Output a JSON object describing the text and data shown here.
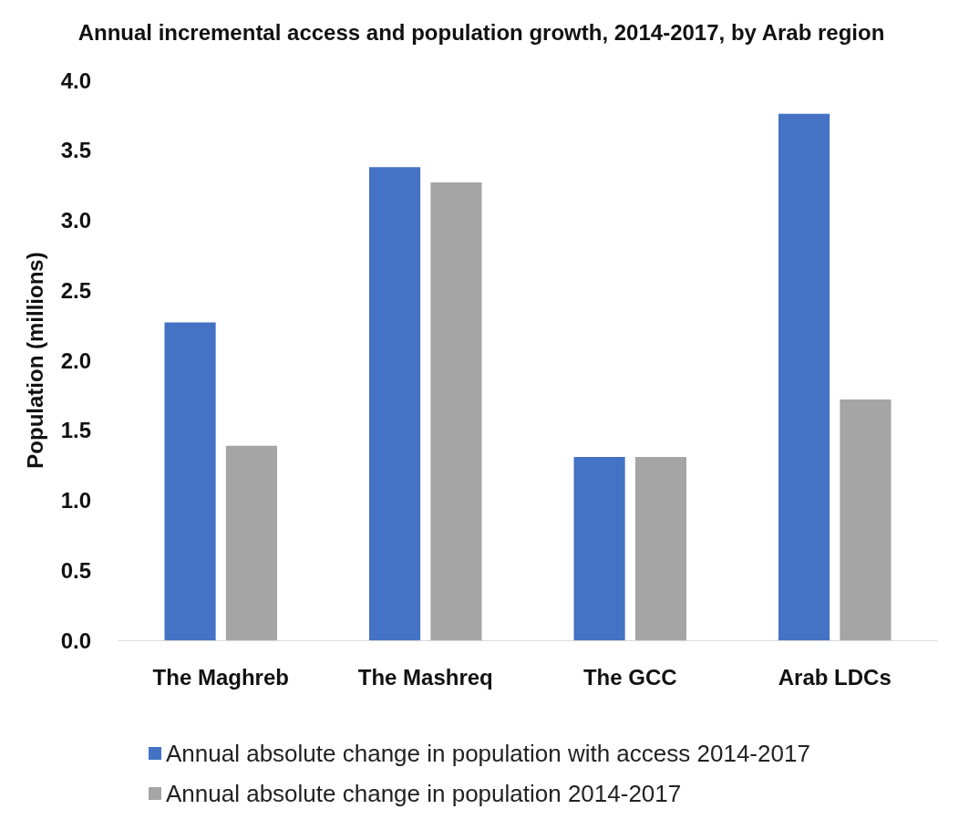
{
  "chart_data": {
    "type": "bar",
    "title": "Annual incremental access and population growth, 2014-2017, by Arab region",
    "ylabel": "Population (millions)",
    "categories": [
      "The Maghreb",
      "The Mashreq",
      "The GCC",
      "Arab LDCs"
    ],
    "series": [
      {
        "name": "Annual absolute change in population with access 2014-2017",
        "color": "#4472c4",
        "values": [
          2.27,
          3.38,
          1.31,
          3.76
        ]
      },
      {
        "name": "Annual absolute change in population 2014-2017",
        "color": "#a5a5a5",
        "values": [
          1.39,
          3.27,
          1.31,
          1.72
        ]
      }
    ],
    "ylim": [
      0,
      4
    ],
    "yticks": [
      {
        "value": 0,
        "label": "0.0"
      },
      {
        "value": 0.5,
        "label": "0.5"
      },
      {
        "value": 1,
        "label": "1.0"
      },
      {
        "value": 1.5,
        "label": "1.5"
      },
      {
        "value": 2,
        "label": "2.0"
      },
      {
        "value": 2.5,
        "label": "2.5"
      },
      {
        "value": 3,
        "label": "3.0"
      },
      {
        "value": 3.5,
        "label": "3.5"
      },
      {
        "value": 4,
        "label": "4.0"
      }
    ],
    "grid": false,
    "legend": "bottom"
  }
}
